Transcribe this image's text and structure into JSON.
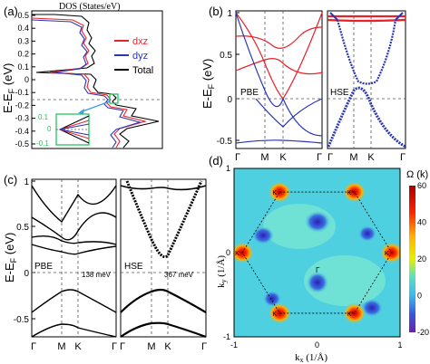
{
  "panels": {
    "a": {
      "label": "(a)",
      "title": "DOS (States/eV)",
      "ylabel": "E-E",
      "ylabel_sub": "F",
      "ylabel_unit": " (eV)",
      "yticks": [
        "0.5",
        "0.4",
        "0.3",
        "0.2",
        "0.1",
        "0",
        "-0.1",
        "-0.2",
        "-0.3",
        "-0.4",
        "-0.5"
      ],
      "legend": [
        {
          "label": "dxz",
          "color": "#e8222b"
        },
        {
          "label": "dyz",
          "color": "#2835b8"
        },
        {
          "label": "Total",
          "color": "#000000"
        }
      ],
      "inset_yticks": [
        "0.1",
        "0",
        "-0.1"
      ],
      "inset_color": "#22c55e"
    },
    "b": {
      "label": "(b)",
      "ylabel": "E-E",
      "ylabel_sub": "F",
      "ylabel_unit": " (eV)",
      "yticks": [
        "1",
        "0.5",
        "0",
        "-0.5"
      ],
      "xticks": [
        "Γ",
        "M",
        "K",
        "Γ"
      ],
      "left_tag": "PBE",
      "right_tag": "HSE",
      "xticks_right": [
        "Γ",
        "M",
        "K",
        "Γ"
      ],
      "colors": {
        "upper": "#e8222b",
        "lower": "#2835b8"
      }
    },
    "c": {
      "label": "(c)",
      "ylabel": "E-E",
      "ylabel_sub": "F",
      "ylabel_unit": " (eV)",
      "yticks": [
        "1",
        "0.5",
        "0",
        "-0.5"
      ],
      "xticks": [
        "Γ",
        "M",
        "K",
        "Γ"
      ],
      "left_tag": "PBE",
      "left_gap": "138 meV",
      "right_tag": "HSE",
      "right_gap": "367 meV"
    },
    "d": {
      "label": "(d)",
      "xlabel": "k",
      "xlabel_sub": "x",
      "xlabel_unit": " (1/Å)",
      "ylabel": "k",
      "ylabel_sub": "y",
      "ylabel_unit": " (1/Å)",
      "xticks": [
        "-1",
        "0",
        "1"
      ],
      "yticks": [
        "1",
        "0",
        "-1"
      ],
      "colorbar_title": "Ω (k)",
      "colorbar_ticks": [
        "60",
        "40",
        "20",
        "0",
        "-20"
      ],
      "k_labels": [
        "K",
        "K'",
        "K'",
        "K",
        "K",
        "K'"
      ],
      "gamma_label": "Γ"
    }
  },
  "chart_data": [
    {
      "type": "line",
      "panel": "a",
      "title": "DOS (States/eV)",
      "ylabel": "E-E_F (eV)",
      "ylim": [
        -0.5,
        0.5
      ],
      "series": [
        {
          "name": "dxz",
          "y": [
            0.5,
            0.4,
            0.37,
            0.3,
            0.2,
            0.1,
            0.05,
            0.0,
            -0.05,
            -0.1,
            -0.2,
            -0.3,
            -0.4,
            -0.5
          ],
          "x": [
            0.2,
            0.6,
            2.0,
            0.8,
            1.6,
            1.2,
            0.4,
            0.05,
            0.4,
            1.6,
            2.2,
            1.0,
            0.4,
            0.3
          ]
        },
        {
          "name": "dyz",
          "y": [
            0.5,
            0.4,
            0.37,
            0.3,
            0.2,
            0.1,
            0.05,
            0.0,
            -0.05,
            -0.1,
            -0.2,
            -0.3,
            -0.4,
            -0.5
          ],
          "x": [
            0.2,
            0.7,
            2.2,
            0.9,
            1.7,
            1.3,
            0.4,
            0.05,
            0.5,
            1.8,
            2.4,
            1.1,
            0.5,
            0.3
          ]
        },
        {
          "name": "Total",
          "y": [
            0.5,
            0.4,
            0.37,
            0.3,
            0.2,
            0.1,
            0.05,
            0.0,
            -0.05,
            -0.1,
            -0.2,
            -0.3,
            -0.4,
            -0.5
          ],
          "x": [
            0.4,
            1.2,
            4.5,
            1.8,
            3.4,
            2.6,
            0.8,
            0.1,
            1.0,
            3.6,
            4.6,
            2.2,
            1.0,
            0.6
          ]
        }
      ]
    },
    {
      "type": "line",
      "panel": "b",
      "xlabel": "",
      "ylabel": "E-E_F (eV)",
      "ylim": [
        -0.6,
        1.0
      ],
      "categories": [
        "Γ",
        "M",
        "K",
        "Γ"
      ],
      "series": [
        {
          "y_PBE_upper": [
            0.95,
            0.72,
            0.6,
            0.42,
            0.95
          ],
          "y_PBE_lower": [
            -0.55,
            -0.48,
            -0.5,
            -0.52,
            -0.55
          ],
          "y_HSE_upper": [
            0.93,
            0.92,
            0.91,
            0.92,
            0.93
          ],
          "y_HSE_lower": [
            -0.6,
            -0.3,
            0.15,
            -0.3,
            -0.6
          ]
        }
      ]
    },
    {
      "type": "line",
      "panel": "c",
      "ylabel": "E-E_F (eV)",
      "ylim": [
        -0.7,
        1.0
      ],
      "categories": [
        "Γ",
        "M",
        "K",
        "Γ"
      ],
      "gaps_meV": {
        "PBE": 138,
        "HSE": 367
      }
    },
    {
      "type": "heatmap",
      "panel": "d",
      "xlabel": "k_x (1/Å)",
      "ylabel": "k_y (1/Å)",
      "xlim": [
        -1,
        1
      ],
      "ylim": [
        -1,
        1
      ],
      "colorbar_range": [
        -20,
        60
      ],
      "peaks": [
        {
          "label": "K",
          "kx": -0.45,
          "ky": 0.72,
          "value": 60
        },
        {
          "label": "K'",
          "kx": 0.45,
          "ky": 0.72,
          "value": 60
        },
        {
          "label": "K'",
          "kx": -0.9,
          "ky": 0.0,
          "value": 60
        },
        {
          "label": "K",
          "kx": 0.9,
          "ky": 0.0,
          "value": 60
        },
        {
          "label": "K",
          "kx": -0.45,
          "ky": -0.72,
          "value": 60
        },
        {
          "label": "K'",
          "kx": 0.45,
          "ky": -0.72,
          "value": 60
        }
      ]
    }
  ]
}
